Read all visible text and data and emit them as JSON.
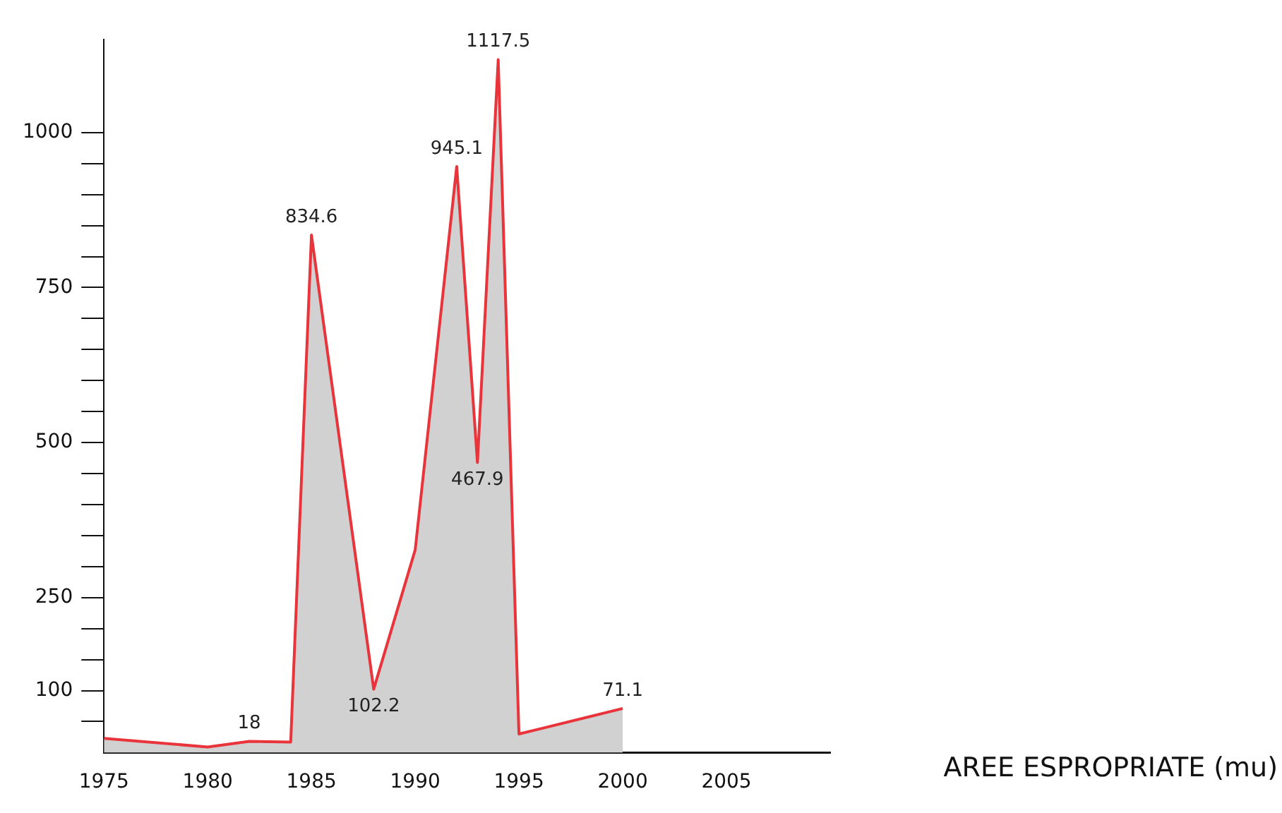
{
  "chart_data": {
    "type": "area",
    "xlabel": "AREE ESPROPRIATE (mu)",
    "x": [
      1975,
      1980,
      1982,
      1984,
      1985,
      1988,
      1990,
      1992,
      1993,
      1994,
      1995,
      2000
    ],
    "series": [
      {
        "color": "#e8343a",
        "values": [
          23,
          9,
          18,
          17,
          834.6,
          102.2,
          327,
          945.1,
          467.9,
          1117.5,
          30,
          71.1
        ],
        "value_labels": [
          null,
          null,
          "18",
          null,
          "834.6",
          "102.2",
          null,
          "945.1",
          "467.9",
          "1117.5",
          null,
          "71.1"
        ]
      }
    ],
    "xlim": [
      1975,
      2010
    ],
    "xticks": [
      1975,
      1980,
      1985,
      1990,
      1995,
      2000,
      2005
    ],
    "ylim": [
      0,
      1150
    ],
    "yticks": [
      {
        "value": 50,
        "label": null
      },
      100,
      {
        "value": 150,
        "label": null
      },
      {
        "value": 200,
        "label": null
      },
      250,
      {
        "value": 300,
        "label": null
      },
      {
        "value": 350,
        "label": null
      },
      {
        "value": 400,
        "label": null
      },
      {
        "value": 450,
        "label": null
      },
      500,
      {
        "value": 550,
        "label": null
      },
      {
        "value": 600,
        "label": null
      },
      {
        "value": 650,
        "label": null
      },
      {
        "value": 700,
        "label": null
      },
      750,
      {
        "value": 800,
        "label": null
      },
      {
        "value": 850,
        "label": null
      },
      {
        "value": 900,
        "label": null
      },
      {
        "value": 950,
        "label": null
      },
      1000
    ],
    "grid": false,
    "legend": false,
    "marker": "none"
  }
}
